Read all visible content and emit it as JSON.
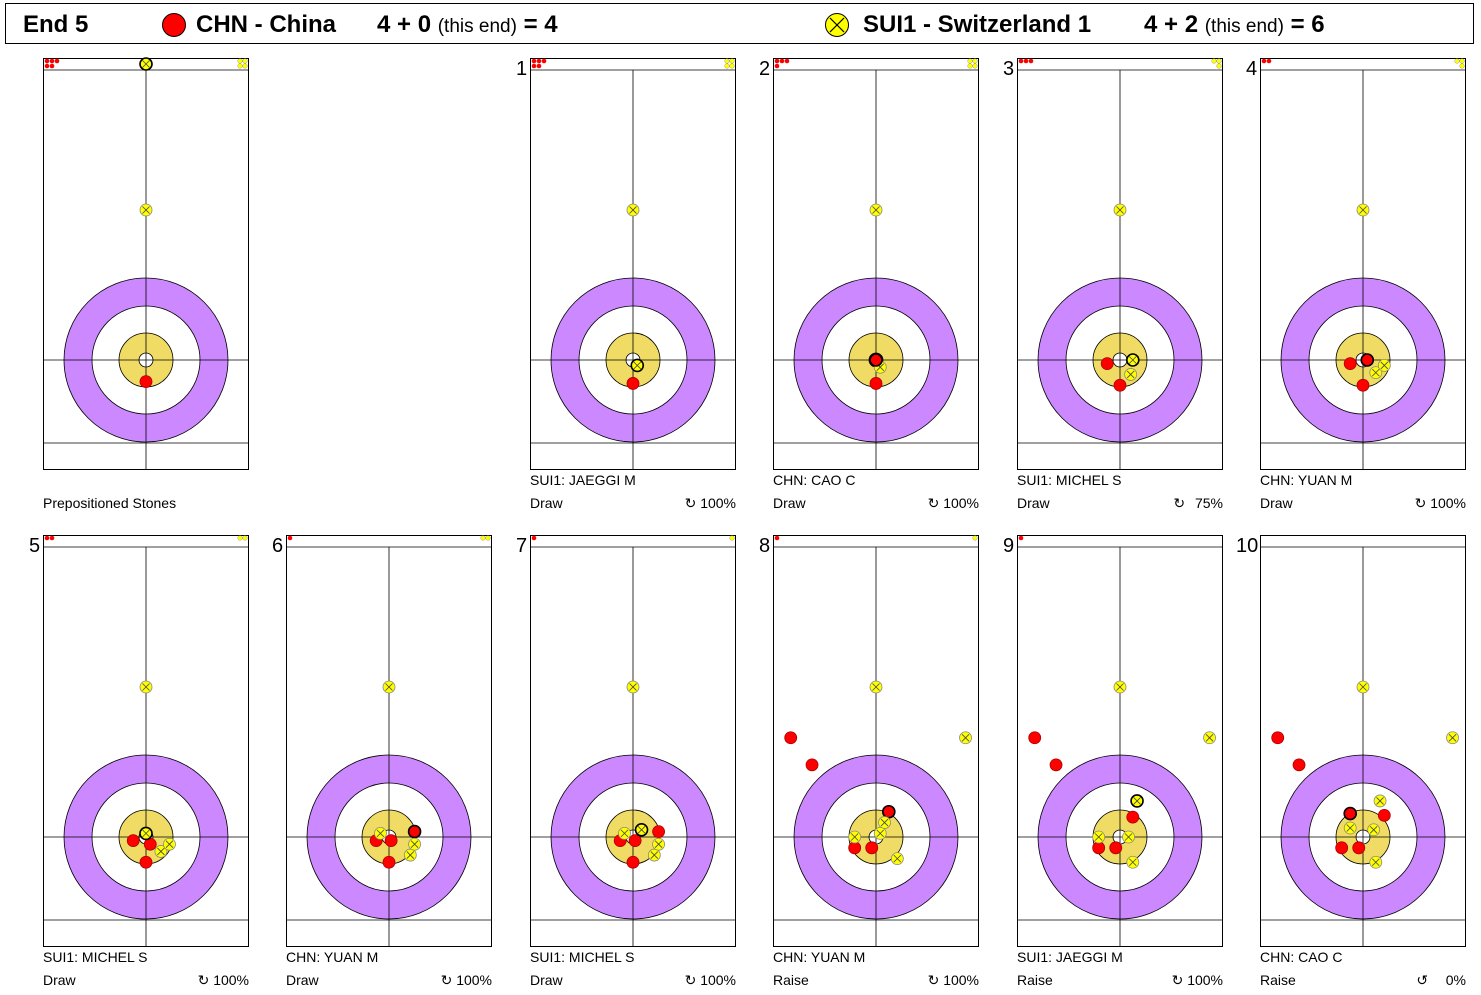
{
  "header": {
    "end": "End 5",
    "team1": {
      "name": "CHN - China",
      "score": "4 + 0",
      "this_end": "(this end)",
      "total": "= 4",
      "color": "#ff0000"
    },
    "team2": {
      "name": "SUI1 - Switzerland 1",
      "score": "4 + 2",
      "this_end": "(this end)",
      "total": "= 6",
      "color": "#ffff00"
    }
  },
  "colors": {
    "twelve_ft": "#cc88ff",
    "button": "#f0dc64",
    "red_stone": "#ff0000",
    "yellow_stone": "#ffff00"
  },
  "rotation_icon": "↻",
  "rotation_icon_ccw": "↺",
  "panels": [
    {
      "number": "",
      "label": "Prepositioned Stones",
      "player": "",
      "shot": "",
      "percent": "",
      "stones": [
        [
          "R",
          0,
          0.12
        ],
        [
          "Y",
          0,
          7.5
        ],
        [
          "YB",
          0,
          14.7
        ]
      ],
      "reserve_red": 5,
      "reserve_yellow": 4
    },
    {
      "number": "1",
      "label": "",
      "player": "SUI1: JAEGGI M",
      "shot": "Draw",
      "percent": "100%",
      "rot": "cw",
      "stones": [
        [
          "R",
          -0.0,
          0.13
        ],
        [
          "YB",
          0.02,
          0.03
        ],
        [
          "Y",
          0,
          7.5
        ]
      ],
      "reserve_red": 5,
      "reserve_yellow": 4
    },
    {
      "number": "2",
      "label": "",
      "player": "CHN: CAO C",
      "shot": "Draw",
      "percent": "100%",
      "rot": "cw",
      "stones": [
        [
          "R",
          0,
          0.13
        ],
        [
          "Y",
          0.02,
          0.04
        ],
        [
          "RB",
          0,
          0.0
        ],
        [
          "Y",
          0,
          7.5
        ]
      ],
      "reserve_red": 4,
      "reserve_yellow": 4
    },
    {
      "number": "3",
      "label": "",
      "player": "SUI1: MICHEL S",
      "shot": "Draw",
      "percent": "75%",
      "rot": "cw",
      "stones": [
        [
          "R",
          0,
          0.14
        ],
        [
          "R",
          -0.06,
          0.02
        ],
        [
          "Y",
          0.05,
          0.08
        ],
        [
          "YB",
          0.06,
          0.0
        ],
        [
          "Y",
          0,
          7.5
        ]
      ],
      "reserve_red": 3,
      "reserve_yellow": 3
    },
    {
      "number": "4",
      "label": "",
      "player": "CHN: YUAN M",
      "shot": "Draw",
      "percent": "100%",
      "rot": "cw",
      "stones": [
        [
          "R",
          0,
          0.14
        ],
        [
          "R",
          -0.06,
          0.02
        ],
        [
          "RB",
          0.02,
          0.0
        ],
        [
          "Y",
          0.06,
          0.07
        ],
        [
          "Y",
          0.1,
          0.03
        ],
        [
          "Y",
          0,
          7.5
        ]
      ],
      "reserve_red": 2,
      "reserve_yellow": 3
    },
    {
      "number": "5",
      "label": "",
      "player": "SUI1: MICHEL S",
      "shot": "Draw",
      "percent": "100%",
      "rot": "cw",
      "stones": [
        [
          "R",
          0,
          0.14
        ],
        [
          "R",
          -0.06,
          0.02
        ],
        [
          "R",
          0.02,
          0.04
        ],
        [
          "Y",
          0.07,
          0.08
        ],
        [
          "Y",
          0.11,
          0.04
        ],
        [
          "YB",
          0,
          -0.02
        ],
        [
          "Y",
          0,
          7.5
        ]
      ],
      "reserve_red": 2,
      "reserve_yellow": 2
    },
    {
      "number": "6",
      "label": "",
      "player": "CHN: YUAN M",
      "shot": "Draw",
      "percent": "100%",
      "rot": "cw",
      "stones": [
        [
          "R",
          0,
          0.14
        ],
        [
          "R",
          -0.06,
          0.02
        ],
        [
          "R",
          0.01,
          0.02
        ],
        [
          "RB",
          0.12,
          -0.03
        ],
        [
          "Y",
          0.1,
          0.1
        ],
        [
          "Y",
          0.12,
          0.04
        ],
        [
          "Y",
          -0.04,
          -0.02
        ],
        [
          "Y",
          0,
          7.5
        ]
      ],
      "reserve_red": 1,
      "reserve_yellow": 2
    },
    {
      "number": "7",
      "label": "",
      "player": "SUI1: MICHEL S",
      "shot": "Draw",
      "percent": "100%",
      "rot": "cw",
      "stones": [
        [
          "R",
          0,
          0.14
        ],
        [
          "R",
          -0.06,
          0.02
        ],
        [
          "R",
          0.01,
          0.02
        ],
        [
          "R",
          0.12,
          -0.03
        ],
        [
          "Y",
          0.1,
          0.1
        ],
        [
          "Y",
          0.12,
          0.04
        ],
        [
          "Y",
          -0.04,
          -0.02
        ],
        [
          "YB",
          0.04,
          -0.04
        ],
        [
          "Y",
          0,
          7.5
        ]
      ],
      "reserve_red": 1,
      "reserve_yellow": 1
    },
    {
      "number": "8",
      "label": "",
      "player": "CHN: YUAN M",
      "shot": "Raise",
      "percent": "100%",
      "rot": "cw",
      "stones": [
        [
          "R",
          -0.1,
          0.06
        ],
        [
          "R",
          -0.02,
          0.06
        ],
        [
          "RB",
          0.06,
          -0.14
        ],
        [
          "Y",
          0.04,
          -0.08
        ],
        [
          "Y",
          0.1,
          0.12
        ],
        [
          "Y",
          0.02,
          -0.02
        ],
        [
          "Y",
          -0.1,
          0.0
        ],
        [
          "Y",
          0,
          7.5
        ],
        [
          "R",
          -0.3,
          -0.4
        ],
        [
          "R",
          -0.4,
          -0.55
        ],
        [
          "Y",
          0.42,
          -0.55
        ]
      ],
      "reserve_red": 1,
      "reserve_yellow": 1
    },
    {
      "number": "9",
      "label": "",
      "player": "SUI1: JAEGGI M",
      "shot": "Raise",
      "percent": "100%",
      "rot": "cw",
      "stones": [
        [
          "R",
          -0.1,
          0.06
        ],
        [
          "R",
          -0.02,
          0.06
        ],
        [
          "R",
          0.06,
          -0.11
        ],
        [
          "YB",
          0.08,
          -0.2
        ],
        [
          "Y",
          0.04,
          0.0
        ],
        [
          "Y",
          0.06,
          0.14
        ],
        [
          "Y",
          -0.1,
          0.0
        ],
        [
          "Y",
          0,
          7.5
        ],
        [
          "R",
          -0.3,
          -0.4
        ],
        [
          "R",
          -0.4,
          -0.55
        ],
        [
          "Y",
          0.42,
          -0.55
        ]
      ],
      "reserve_red": 1,
      "reserve_yellow": 0
    },
    {
      "number": "10",
      "label": "",
      "player": "CHN: CAO C",
      "shot": "Raise",
      "percent": "0%",
      "rot": "ccw",
      "stones": [
        [
          "R",
          -0.1,
          0.06
        ],
        [
          "R",
          -0.02,
          0.06
        ],
        [
          "R",
          0.1,
          -0.12
        ],
        [
          "RB",
          -0.06,
          -0.13
        ],
        [
          "Y",
          0.08,
          -0.2
        ],
        [
          "Y",
          0.05,
          -0.04
        ],
        [
          "Y",
          0.06,
          0.14
        ],
        [
          "Y",
          -0.06,
          -0.05
        ],
        [
          "Y",
          0,
          7.5
        ],
        [
          "R",
          -0.3,
          -0.4
        ],
        [
          "R",
          -0.4,
          -0.55
        ],
        [
          "Y",
          0.42,
          -0.55
        ]
      ],
      "reserve_red": 0,
      "reserve_yellow": 0
    }
  ]
}
